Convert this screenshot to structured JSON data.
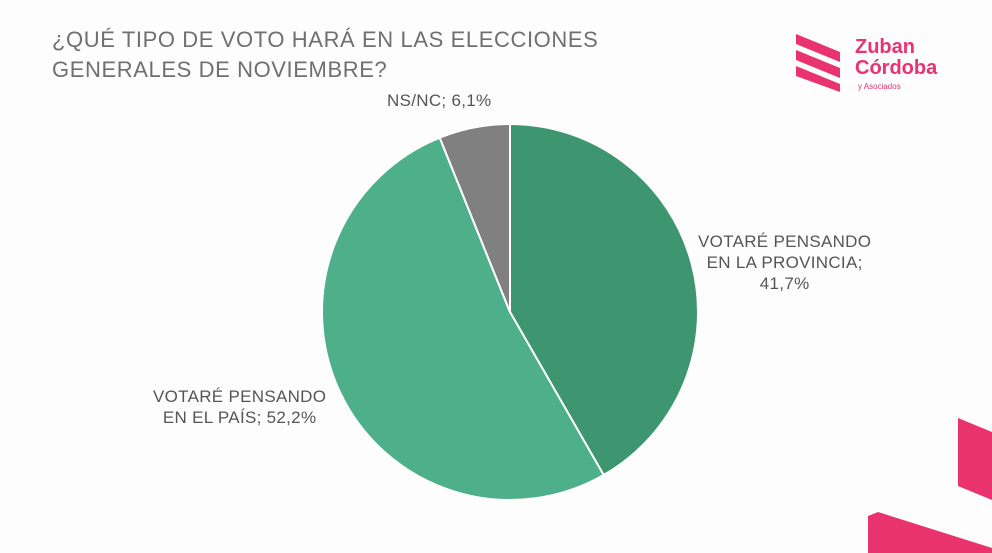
{
  "chart_data": {
    "type": "pie",
    "title": "¿QUÉ TIPO DE VOTO HARÁ EN LAS ELECCIONES GENERALES DE NOVIEMBRE?",
    "slices": [
      {
        "label_lines": [
          "VOTARÉ PENSANDO",
          "EN LA PROVINCIA;",
          "41,7%"
        ],
        "value": 41.7,
        "color": "#3e9670"
      },
      {
        "label_lines": [
          "VOTARÉ PENSANDO",
          "EN EL PAÍS; 52,2%"
        ],
        "value": 52.2,
        "color": "#4db08a"
      },
      {
        "label_lines": [
          "NS/NC; 6,1%"
        ],
        "value": 6.1,
        "color": "#808080"
      }
    ],
    "start": "12 o'clock, clockwise"
  },
  "logo": {
    "line1": "Zuban",
    "line2": "Córdoba",
    "sub": "y Asociados",
    "color": "#e8336f"
  }
}
